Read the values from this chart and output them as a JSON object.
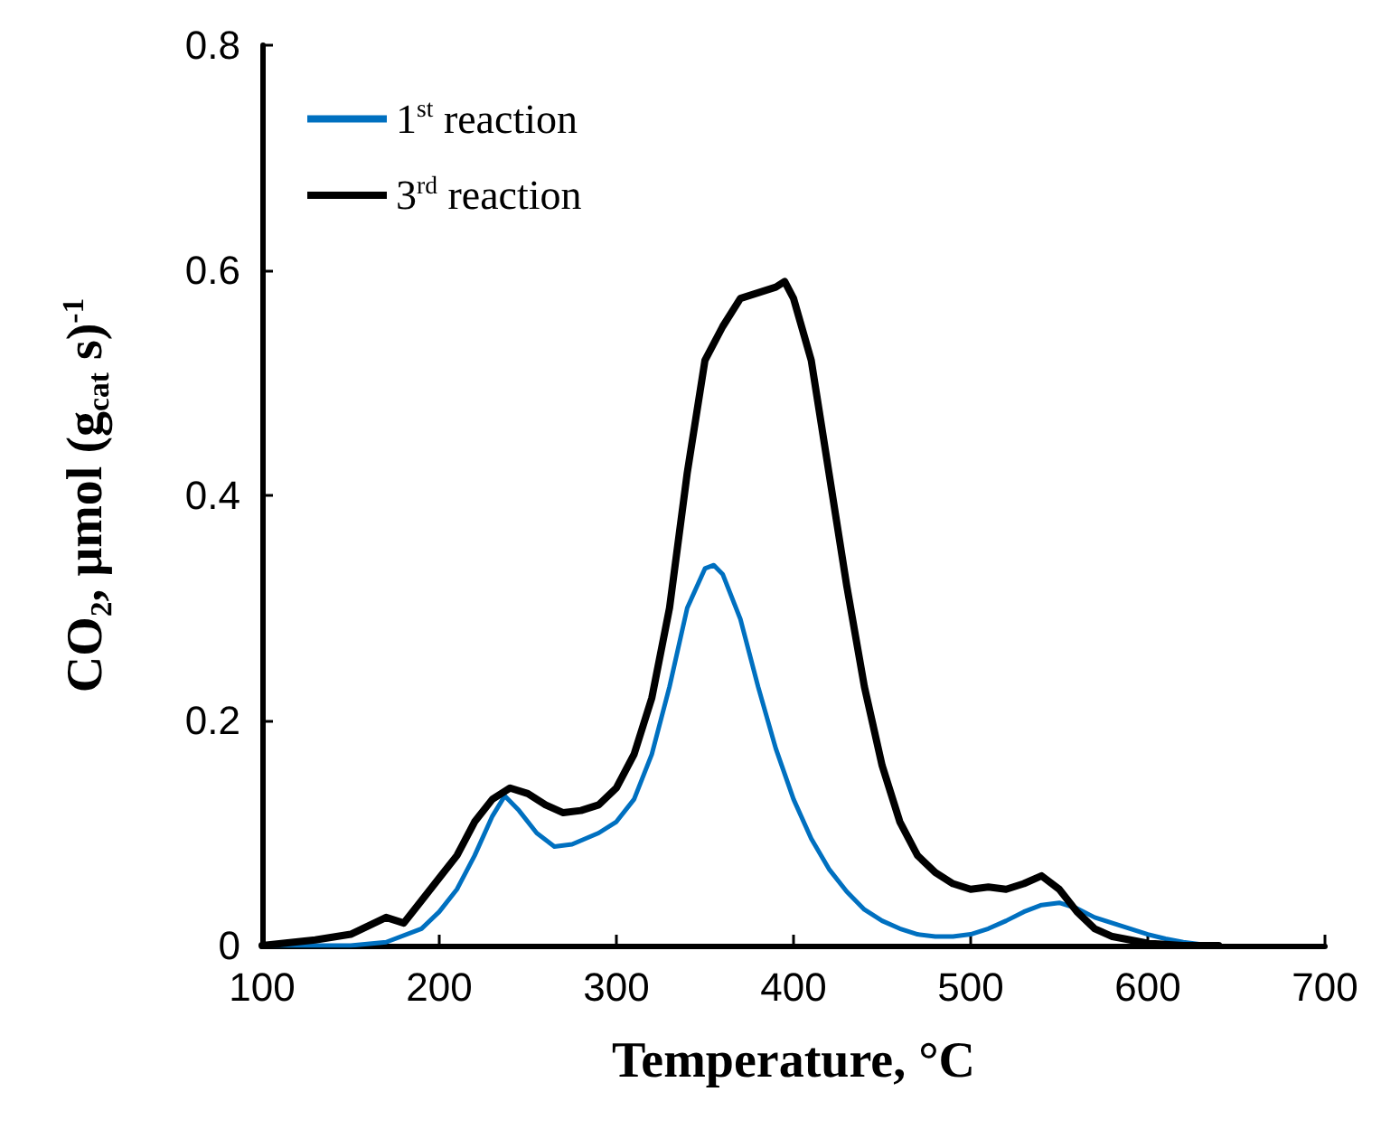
{
  "chart_data": {
    "type": "line",
    "xlabel": "Temperature, °C",
    "ylabel": "CO₂, μmol (g$_{cat}$ s)$^{-1}$",
    "xlim": [
      100,
      700
    ],
    "xticks": [
      100,
      200,
      300,
      400,
      500,
      600,
      700
    ],
    "ylim": [
      0,
      0.8
    ],
    "yticks": [
      0,
      0.2,
      0.4,
      0.6,
      0.8
    ],
    "legend": "top left",
    "grid": false,
    "marker": "none",
    "line_style": "solid",
    "series": [
      {
        "name": "1$^{st}$ reaction",
        "color": "#0070c0",
        "x": [
          100,
          150,
          170,
          190,
          200,
          210,
          220,
          230,
          237,
          245,
          255,
          265,
          275,
          290,
          300,
          310,
          320,
          330,
          340,
          350,
          355,
          360,
          370,
          380,
          390,
          400,
          410,
          420,
          430,
          440,
          450,
          460,
          470,
          480,
          490,
          500,
          510,
          520,
          530,
          540,
          550,
          560,
          570,
          580,
          590,
          600,
          610,
          620,
          630
        ],
        "values": [
          0,
          0,
          0.003,
          0.015,
          0.03,
          0.05,
          0.08,
          0.115,
          0.133,
          0.12,
          0.1,
          0.088,
          0.09,
          0.1,
          0.11,
          0.13,
          0.17,
          0.23,
          0.3,
          0.335,
          0.338,
          0.33,
          0.29,
          0.23,
          0.175,
          0.13,
          0.095,
          0.068,
          0.048,
          0.032,
          0.022,
          0.015,
          0.01,
          0.008,
          0.008,
          0.01,
          0.015,
          0.022,
          0.03,
          0.036,
          0.038,
          0.033,
          0.025,
          0.02,
          0.015,
          0.01,
          0.006,
          0.003,
          0.001
        ]
      },
      {
        "name": "3$^{rd}$ reaction",
        "color": "#000000",
        "x": [
          100,
          130,
          150,
          170,
          180,
          190,
          200,
          210,
          220,
          230,
          240,
          250,
          260,
          270,
          280,
          290,
          300,
          310,
          320,
          330,
          340,
          350,
          360,
          370,
          380,
          390,
          395,
          400,
          410,
          420,
          430,
          440,
          450,
          460,
          470,
          480,
          490,
          500,
          510,
          520,
          530,
          540,
          550,
          560,
          570,
          580,
          600,
          620,
          640
        ],
        "values": [
          0,
          0.005,
          0.01,
          0.025,
          0.02,
          0.04,
          0.06,
          0.08,
          0.11,
          0.13,
          0.14,
          0.135,
          0.125,
          0.118,
          0.12,
          0.125,
          0.14,
          0.17,
          0.22,
          0.3,
          0.42,
          0.52,
          0.55,
          0.575,
          0.58,
          0.585,
          0.59,
          0.575,
          0.52,
          0.42,
          0.32,
          0.23,
          0.16,
          0.11,
          0.08,
          0.065,
          0.055,
          0.05,
          0.052,
          0.05,
          0.055,
          0.062,
          0.05,
          0.03,
          0.015,
          0.008,
          0.002,
          0,
          0
        ]
      }
    ]
  }
}
